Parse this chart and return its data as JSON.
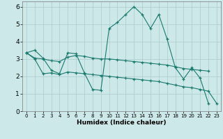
{
  "title": "",
  "xlabel": "Humidex (Indice chaleur)",
  "xlim": [
    -0.5,
    23.5
  ],
  "ylim": [
    0,
    6.3
  ],
  "line_color": "#1a7a6e",
  "bg_color": "#cce8e8",
  "grid_color": "#aacccc",
  "series": [
    {
      "x": [
        0,
        1,
        2,
        3,
        4,
        5,
        6,
        7,
        8,
        9,
        10,
        11,
        12,
        13,
        14,
        15,
        16,
        17,
        18,
        19,
        20,
        21,
        22
      ],
      "y": [
        3.35,
        3.5,
        3.05,
        2.35,
        2.15,
        3.35,
        3.3,
        2.2,
        1.25,
        1.2,
        4.75,
        5.1,
        5.55,
        6.0,
        5.55,
        4.75,
        5.55,
        4.15,
        2.5,
        1.85,
        2.5,
        1.9,
        0.45
      ]
    },
    {
      "x": [
        0,
        1,
        2,
        3,
        4,
        5,
        6,
        7,
        8,
        9,
        10,
        11,
        12,
        13,
        14,
        15,
        16,
        17,
        18,
        19,
        20,
        21,
        22
      ],
      "y": [
        3.35,
        3.05,
        3.0,
        2.9,
        2.85,
        3.1,
        3.2,
        3.15,
        3.05,
        3.0,
        3.0,
        2.95,
        2.9,
        2.85,
        2.8,
        2.75,
        2.7,
        2.65,
        2.55,
        2.45,
        2.4,
        2.35,
        2.3
      ]
    },
    {
      "x": [
        0,
        1,
        2,
        3,
        4,
        5,
        6,
        7,
        8,
        9,
        10,
        11,
        12,
        13,
        14,
        15,
        16,
        17,
        18,
        19,
        20,
        21,
        22,
        23
      ],
      "y": [
        3.35,
        3.0,
        2.15,
        2.2,
        2.1,
        2.25,
        2.2,
        2.15,
        2.1,
        2.05,
        2.0,
        1.95,
        1.9,
        1.85,
        1.8,
        1.75,
        1.7,
        1.6,
        1.5,
        1.4,
        1.35,
        1.25,
        1.15,
        0.45
      ]
    }
  ]
}
